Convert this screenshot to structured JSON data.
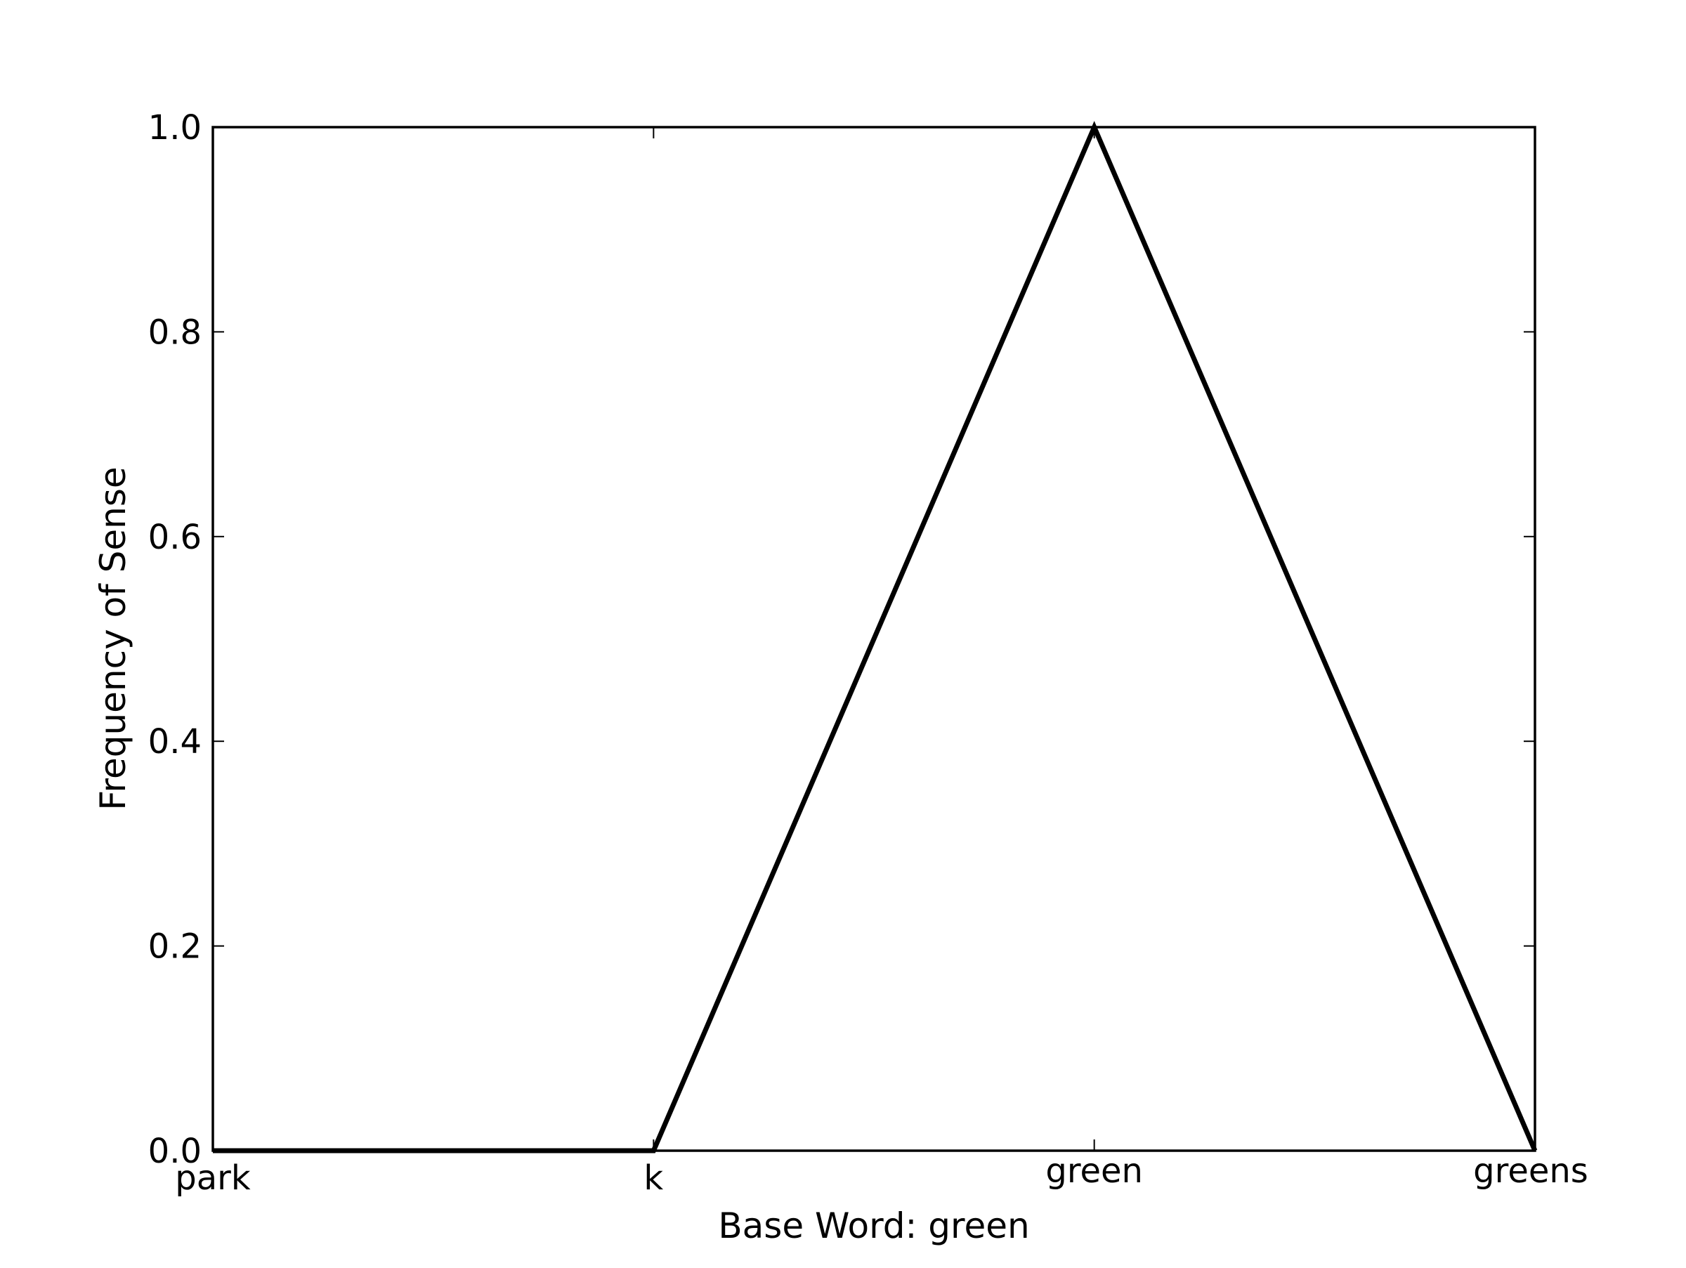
{
  "chart_data": {
    "type": "line",
    "categories": [
      "park",
      "k",
      "green",
      "greens"
    ],
    "series": [
      {
        "values": [
          0.0,
          0.0,
          1.0,
          0.0
        ]
      }
    ],
    "xlabel": "Base Word: green",
    "ylabel": "Frequency of Sense",
    "ylim": [
      0.0,
      1.0
    ],
    "yticks": [
      "0.0",
      "0.2",
      "0.4",
      "0.6",
      "0.8",
      "1.0"
    ],
    "grid": false,
    "line_color": "#000000"
  }
}
